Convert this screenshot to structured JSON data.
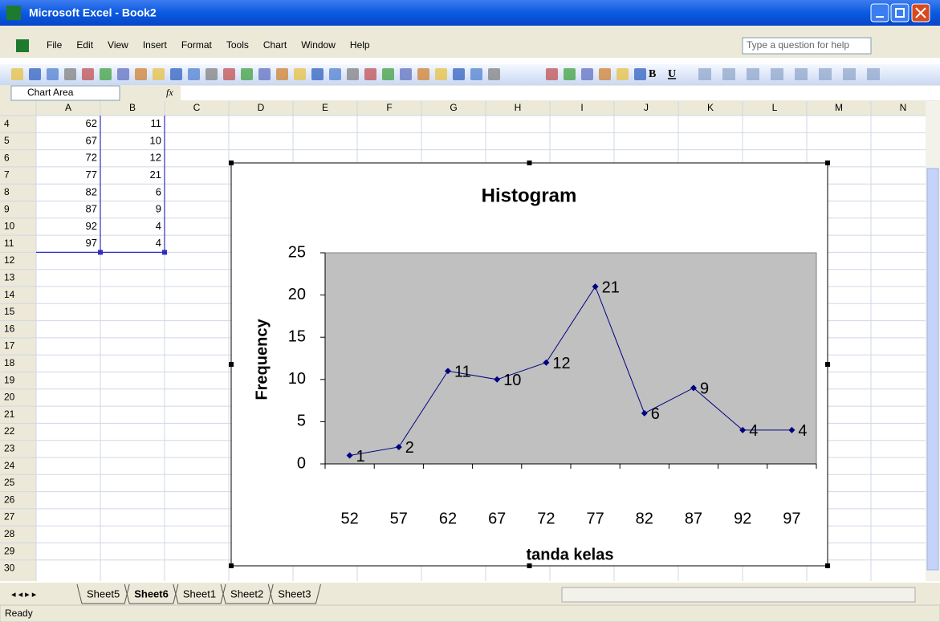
{
  "window": {
    "title": "Microsoft Excel - Book2"
  },
  "menu": [
    "File",
    "Edit",
    "View",
    "Insert",
    "Format",
    "Tools",
    "Chart",
    "Window",
    "Help"
  ],
  "help_box": "Type a question for help",
  "toolbar_format": [
    "B",
    "U"
  ],
  "name_box": "Chart Area",
  "formula_icon": "fx",
  "columns": [
    "A",
    "B",
    "C",
    "D",
    "E",
    "F",
    "G",
    "H",
    "I",
    "J",
    "K",
    "L",
    "M",
    "N"
  ],
  "rows": [
    4,
    5,
    6,
    7,
    8,
    9,
    10,
    11,
    12,
    13,
    14,
    15,
    16,
    17,
    18,
    19,
    20,
    21,
    22,
    23,
    24,
    25,
    26,
    27,
    28,
    29,
    30
  ],
  "cells": [
    [
      62,
      11
    ],
    [
      67,
      10
    ],
    [
      72,
      12
    ],
    [
      77,
      21
    ],
    [
      82,
      6
    ],
    [
      87,
      9
    ],
    [
      92,
      4
    ],
    [
      97,
      4
    ]
  ],
  "chart_data": {
    "type": "line",
    "title": "Histogram",
    "x_label": "tanda kelas",
    "y_label": "Frequency",
    "categories": [
      52,
      57,
      62,
      67,
      72,
      77,
      82,
      87,
      92,
      97
    ],
    "values": [
      1,
      2,
      11,
      10,
      12,
      21,
      6,
      9,
      4,
      4
    ],
    "color": "#000080",
    "plot_background": "#c0c0c0",
    "ylim": [
      0,
      25
    ],
    "yticks": [
      0,
      5,
      10,
      15,
      20,
      25
    ],
    "data_labels": true
  },
  "sheet_tabs": [
    {
      "name": "Sheet5",
      "active": false
    },
    {
      "name": "Sheet6",
      "active": true
    },
    {
      "name": "Sheet1",
      "active": false
    },
    {
      "name": "Sheet2",
      "active": false
    },
    {
      "name": "Sheet3",
      "active": false
    }
  ],
  "status": "Ready"
}
